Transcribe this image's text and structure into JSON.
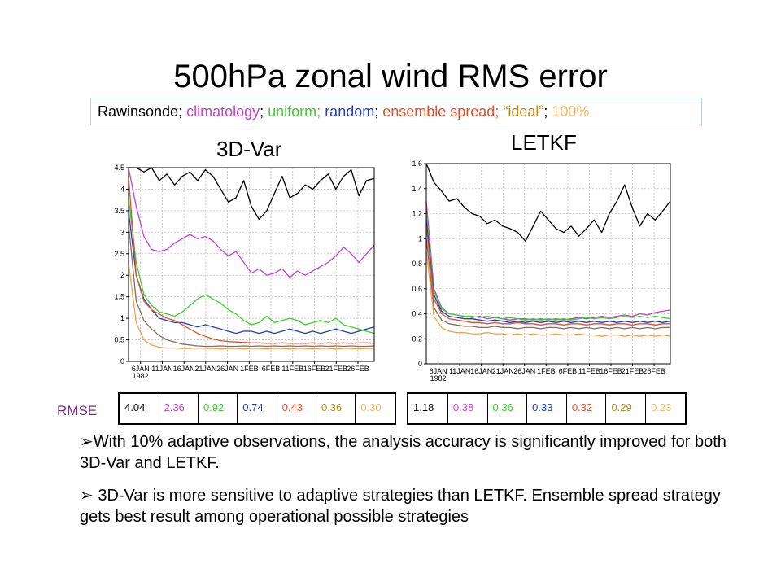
{
  "title": "500hPa zonal wind RMS error",
  "legend": [
    {
      "text": "Rawinsonde",
      "color": "#000000"
    },
    {
      "text": "; ",
      "color": "#000000"
    },
    {
      "text": "climatology",
      "color": "#c43fd0"
    },
    {
      "text": "; ",
      "color": "#000000"
    },
    {
      "text": "uniform;",
      "color": "#3ccf2a"
    },
    {
      "text": " ",
      "color": "#000000"
    },
    {
      "text": "random",
      "color": "#1f3fbf"
    },
    {
      "text": "; ",
      "color": "#000000"
    },
    {
      "text": "ensemble spread;",
      "color": "#e0502c"
    },
    {
      "text": " ",
      "color": "#000000"
    },
    {
      "text": "“ideal”",
      "color": "#b8871f"
    },
    {
      "text": "; ",
      "color": "#000000"
    },
    {
      "text": "100%",
      "color": "#f5b865"
    }
  ],
  "rmse_label": "RMSE",
  "bullets": [
    "➢With 10% adaptive observations, the analysis accuracy is significantly improved for both 3D-Var and LETKF.",
    "➢ 3D-Var is more sensitive to adaptive strategies than LETKF. Ensemble spread strategy gets best result among operational possible strategies"
  ],
  "chart_data": [
    {
      "type": "line",
      "title": "3D-Var",
      "ylim": [
        0,
        4.5
      ],
      "yticks": [
        "0",
        "0.5",
        "1",
        "1.5",
        "2",
        "2.5",
        "3",
        "3.5",
        "4",
        "4.5"
      ],
      "xticks": [
        "6JAN",
        "11JAN",
        "16JAN",
        "21JAN",
        "26JAN",
        "1FEB",
        "6FEB",
        "11FEB",
        "16FEB",
        "21FEB",
        "26FEB"
      ],
      "xsub": "1982",
      "grid": true,
      "series": [
        {
          "color": "#000000",
          "values": [
            4.5,
            4.6,
            4.4,
            4.5,
            4.2,
            4.35,
            4.1,
            4.3,
            4.4,
            4.2,
            4.45,
            4.3,
            4.0,
            3.7,
            3.8,
            4.2,
            3.6,
            3.3,
            3.5,
            3.9,
            4.3,
            3.8,
            3.9,
            4.1,
            4.0,
            4.2,
            4.35,
            4.0,
            4.3,
            4.45,
            3.85,
            4.2,
            4.25
          ]
        },
        {
          "color": "#c43fd0",
          "values": [
            4.5,
            3.6,
            2.9,
            2.6,
            2.55,
            2.6,
            2.75,
            2.85,
            2.95,
            2.85,
            2.9,
            2.8,
            2.6,
            2.45,
            2.55,
            2.3,
            2.05,
            2.15,
            2.0,
            2.05,
            2.15,
            1.95,
            2.1,
            2.0,
            2.1,
            2.2,
            2.3,
            2.45,
            2.65,
            2.5,
            2.3,
            2.5,
            2.7
          ]
        },
        {
          "color": "#3ccf2a",
          "values": [
            3.8,
            2.3,
            1.55,
            1.3,
            1.15,
            1.1,
            1.05,
            1.15,
            1.3,
            1.45,
            1.55,
            1.45,
            1.35,
            1.2,
            1.1,
            0.95,
            0.85,
            0.9,
            1.05,
            0.9,
            0.95,
            1.0,
            0.95,
            0.85,
            0.9,
            0.95,
            0.9,
            1.0,
            0.85,
            0.8,
            0.75,
            0.7,
            0.65
          ]
        },
        {
          "color": "#1f3fbf",
          "values": [
            3.5,
            2.0,
            1.45,
            1.2,
            1.0,
            0.95,
            0.9,
            0.9,
            0.85,
            0.8,
            0.85,
            0.8,
            0.75,
            0.7,
            0.65,
            0.7,
            0.7,
            0.65,
            0.7,
            0.65,
            0.7,
            0.75,
            0.7,
            0.65,
            0.7,
            0.65,
            0.7,
            0.75,
            0.7,
            0.65,
            0.7,
            0.75,
            0.8
          ]
        },
        {
          "color": "#e0502c",
          "values": [
            4.3,
            2.0,
            1.4,
            1.2,
            1.1,
            1.0,
            0.95,
            0.85,
            0.75,
            0.65,
            0.58,
            0.52,
            0.48,
            0.46,
            0.45,
            0.44,
            0.43,
            0.43,
            0.42,
            0.42,
            0.43,
            0.42,
            0.42,
            0.42,
            0.43,
            0.42,
            0.43,
            0.42,
            0.43,
            0.42,
            0.43,
            0.43,
            0.42
          ]
        },
        {
          "color": "#8a6a5a",
          "values": [
            3.2,
            1.4,
            0.95,
            0.75,
            0.6,
            0.5,
            0.45,
            0.4,
            0.38,
            0.36,
            0.35,
            0.35,
            0.36,
            0.35,
            0.35,
            0.36,
            0.35,
            0.36,
            0.35,
            0.36,
            0.35,
            0.36,
            0.35,
            0.36,
            0.35,
            0.36,
            0.35,
            0.36,
            0.35,
            0.36,
            0.35,
            0.35,
            0.36
          ]
        },
        {
          "color": "#f5a04a",
          "values": [
            2.3,
            0.9,
            0.5,
            0.38,
            0.33,
            0.31,
            0.31,
            0.3,
            0.3,
            0.31,
            0.3,
            0.3,
            0.29,
            0.3,
            0.3,
            0.29,
            0.3,
            0.3,
            0.29,
            0.3,
            0.3,
            0.29,
            0.3,
            0.3,
            0.29,
            0.3,
            0.3,
            0.29,
            0.3,
            0.3,
            0.29,
            0.3,
            0.3
          ]
        }
      ],
      "rmse": [
        {
          "value": "4.04",
          "color": "#000000"
        },
        {
          "value": "2.36",
          "color": "#c43fd0"
        },
        {
          "value": "0.92",
          "color": "#3ccf2a"
        },
        {
          "value": "0.74",
          "color": "#1f3fbf"
        },
        {
          "value": "0.43",
          "color": "#e0502c"
        },
        {
          "value": "0.36",
          "color": "#b8871f"
        },
        {
          "value": "0.30",
          "color": "#f5b865"
        }
      ]
    },
    {
      "type": "line",
      "title": "LETKF",
      "ylim": [
        0,
        1.6
      ],
      "yticks": [
        "0",
        "0.2",
        "0.4",
        "0.6",
        "0.8",
        "1",
        "1.2",
        "1.4",
        "1.6"
      ],
      "xticks": [
        "6JAN",
        "11JAN",
        "16JAN",
        "21JAN",
        "26JAN",
        "1FEB",
        "6FEB",
        "11FEB",
        "16FEB",
        "21FEB",
        "26FEB"
      ],
      "xsub": "1982",
      "grid": true,
      "series": [
        {
          "color": "#000000",
          "values": [
            1.6,
            1.45,
            1.38,
            1.3,
            1.32,
            1.25,
            1.2,
            1.18,
            1.12,
            1.15,
            1.1,
            1.08,
            1.05,
            0.98,
            1.1,
            1.22,
            1.15,
            1.08,
            1.05,
            1.1,
            1.02,
            1.08,
            1.15,
            1.05,
            1.2,
            1.3,
            1.43,
            1.25,
            1.1,
            1.2,
            1.15,
            1.22,
            1.3
          ]
        },
        {
          "color": "#c43fd0",
          "values": [
            1.3,
            0.6,
            0.45,
            0.4,
            0.39,
            0.38,
            0.37,
            0.38,
            0.36,
            0.37,
            0.36,
            0.35,
            0.36,
            0.36,
            0.35,
            0.36,
            0.35,
            0.36,
            0.35,
            0.36,
            0.37,
            0.36,
            0.37,
            0.38,
            0.37,
            0.38,
            0.39,
            0.38,
            0.4,
            0.39,
            0.41,
            0.42,
            0.43
          ]
        },
        {
          "color": "#3ccf2a",
          "values": [
            1.2,
            0.58,
            0.44,
            0.4,
            0.39,
            0.38,
            0.38,
            0.37,
            0.38,
            0.37,
            0.36,
            0.37,
            0.36,
            0.35,
            0.36,
            0.35,
            0.36,
            0.35,
            0.36,
            0.35,
            0.36,
            0.37,
            0.36,
            0.37,
            0.36,
            0.37,
            0.38,
            0.37,
            0.38,
            0.37,
            0.38,
            0.37,
            0.36
          ]
        },
        {
          "color": "#1f3fbf",
          "values": [
            1.15,
            0.55,
            0.42,
            0.38,
            0.37,
            0.36,
            0.36,
            0.35,
            0.34,
            0.35,
            0.34,
            0.33,
            0.34,
            0.33,
            0.34,
            0.33,
            0.34,
            0.33,
            0.34,
            0.33,
            0.34,
            0.33,
            0.34,
            0.33,
            0.34,
            0.33,
            0.34,
            0.33,
            0.34,
            0.33,
            0.34,
            0.33,
            0.34
          ]
        },
        {
          "color": "#e0502c",
          "values": [
            1.1,
            0.52,
            0.4,
            0.36,
            0.35,
            0.34,
            0.33,
            0.33,
            0.32,
            0.33,
            0.32,
            0.32,
            0.33,
            0.32,
            0.32,
            0.31,
            0.32,
            0.32,
            0.31,
            0.32,
            0.32,
            0.31,
            0.32,
            0.32,
            0.31,
            0.32,
            0.32,
            0.31,
            0.32,
            0.32,
            0.31,
            0.32,
            0.32
          ]
        },
        {
          "color": "#8a6a5a",
          "values": [
            1.0,
            0.45,
            0.35,
            0.32,
            0.31,
            0.3,
            0.3,
            0.29,
            0.29,
            0.3,
            0.29,
            0.29,
            0.28,
            0.29,
            0.29,
            0.28,
            0.29,
            0.29,
            0.28,
            0.29,
            0.28,
            0.29,
            0.28,
            0.29,
            0.28,
            0.29,
            0.28,
            0.29,
            0.28,
            0.29,
            0.28,
            0.29,
            0.29
          ]
        },
        {
          "color": "#f5a04a",
          "values": [
            0.9,
            0.38,
            0.29,
            0.26,
            0.25,
            0.25,
            0.24,
            0.24,
            0.25,
            0.24,
            0.24,
            0.23,
            0.24,
            0.23,
            0.24,
            0.23,
            0.23,
            0.24,
            0.23,
            0.23,
            0.24,
            0.23,
            0.23,
            0.22,
            0.23,
            0.23,
            0.22,
            0.23,
            0.22,
            0.23,
            0.22,
            0.23,
            0.22
          ]
        }
      ],
      "rmse": [
        {
          "value": "1.18",
          "color": "#000000"
        },
        {
          "value": "0.38",
          "color": "#c43fd0"
        },
        {
          "value": "0.36",
          "color": "#3ccf2a"
        },
        {
          "value": "0.33",
          "color": "#1f3fbf"
        },
        {
          "value": "0.32",
          "color": "#e0502c"
        },
        {
          "value": "0.29",
          "color": "#b8871f"
        },
        {
          "value": "0.23",
          "color": "#f5b865"
        }
      ]
    }
  ]
}
